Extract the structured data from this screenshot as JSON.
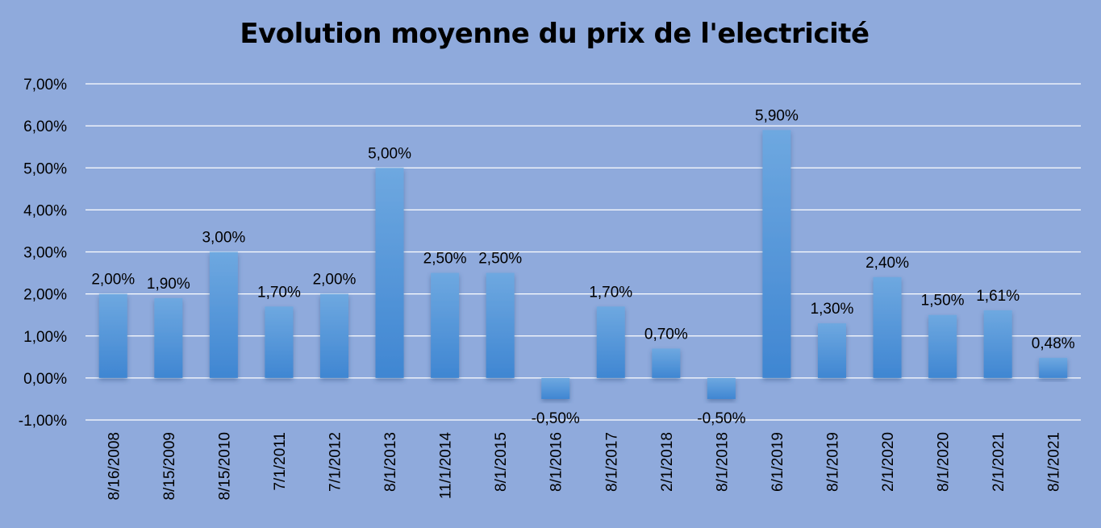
{
  "colors": {
    "background": "#8faadc",
    "bar_top": "#6ea8e0",
    "bar_bottom": "#3f86d2",
    "gridline": "#ffffff"
  },
  "chart_data": {
    "type": "bar",
    "title": "Evolution moyenne du prix de l'electricité",
    "xlabel": "",
    "ylabel": "",
    "ylim": [
      -0.01,
      0.07
    ],
    "yticks": [
      -0.01,
      0.0,
      0.01,
      0.02,
      0.03,
      0.04,
      0.05,
      0.06,
      0.07
    ],
    "ytick_labels": [
      "-1,00%",
      "0,00%",
      "1,00%",
      "2,00%",
      "3,00%",
      "4,00%",
      "5,00%",
      "6,00%",
      "7,00%"
    ],
    "grid": true,
    "legend": "none",
    "categories": [
      "8/16/2008",
      "8/15/2009",
      "8/15/2010",
      "7/1/2011",
      "7/1/2012",
      "8/1/2013",
      "11/1/2014",
      "8/1/2015",
      "8/1/2016",
      "8/1/2017",
      "2/1/2018",
      "8/1/2018",
      "6/1/2019",
      "8/1/2019",
      "2/1/2020",
      "8/1/2020",
      "2/1/2021",
      "8/1/2021"
    ],
    "values": [
      0.02,
      0.019,
      0.03,
      0.017,
      0.02,
      0.05,
      0.025,
      0.025,
      -0.005,
      0.017,
      0.007,
      -0.005,
      0.059,
      0.013,
      0.024,
      0.015,
      0.0161,
      0.0048
    ],
    "data_labels": [
      "2,00%",
      "1,90%",
      "3,00%",
      "1,70%",
      "2,00%",
      "5,00%",
      "2,50%",
      "2,50%",
      "-0,50%",
      "1,70%",
      "0,70%",
      "-0,50%",
      "5,90%",
      "1,30%",
      "2,40%",
      "1,50%",
      "1,61%",
      "0,48%"
    ]
  }
}
